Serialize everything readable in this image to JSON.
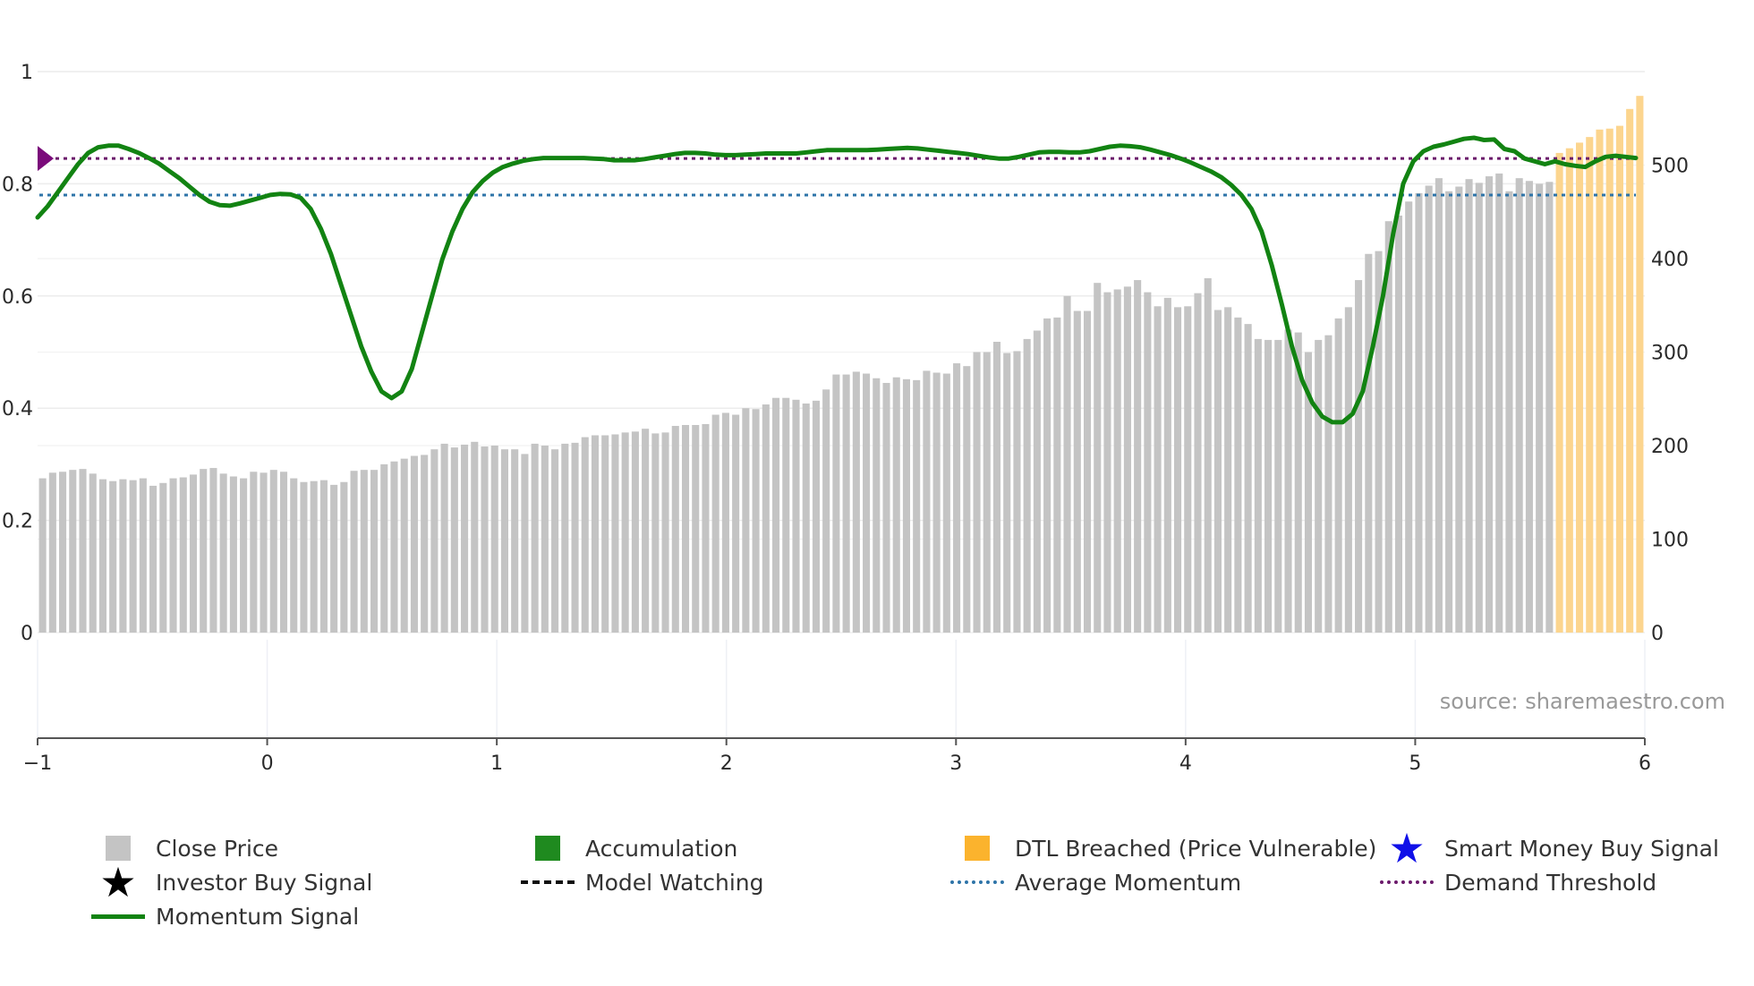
{
  "chart_data": {
    "type": "bar+line",
    "source": "source: sharemaestro.com",
    "left_axis": {
      "ticks": [
        0,
        0.2,
        0.4,
        0.6,
        0.8,
        1
      ],
      "tick_labels": [
        "0",
        "0.2",
        "0.4",
        "0.6",
        "0.8",
        "1"
      ],
      "range": [
        0,
        1
      ]
    },
    "right_axis": {
      "ticks": [
        0,
        100,
        200,
        300,
        400,
        500
      ],
      "tick_labels": [
        "0",
        "100",
        "200",
        "300",
        "400",
        "500"
      ],
      "range": [
        0,
        600
      ]
    },
    "x_axis": {
      "ticks": [
        -1,
        0,
        1,
        2,
        3,
        4,
        5,
        6
      ],
      "tick_labels": [
        "−1",
        "0",
        "1",
        "2",
        "3",
        "4",
        "5",
        "6"
      ],
      "range": [
        -1,
        6
      ]
    },
    "average_momentum": 0.78,
    "demand_threshold": 0.845,
    "colors": {
      "close_price": "#c4c4c4",
      "dtl_breached": "#fcd58e",
      "accumulation": "#1f8a1f",
      "momentum": "#128312",
      "average_momentum": "#2e74a8",
      "demand_threshold": "#6b1a6b",
      "marker": "#7a0a7a"
    },
    "close_price_series": {
      "name": "Close Price",
      "values": [
        165,
        171,
        172,
        174,
        175,
        170,
        164,
        162,
        164,
        163,
        165,
        157,
        160,
        165,
        166,
        169,
        175,
        176,
        170,
        167,
        165,
        172,
        171,
        174,
        172,
        165,
        161,
        162,
        163,
        158,
        161,
        173,
        174,
        174,
        180,
        183,
        186,
        189,
        190,
        196,
        202,
        198,
        201,
        204,
        199,
        200,
        196,
        196,
        191,
        202,
        200,
        196,
        202,
        203,
        209,
        211,
        211,
        212,
        214,
        215,
        218,
        213,
        214,
        221,
        222,
        222,
        223,
        233,
        235,
        233,
        240,
        239,
        244,
        251,
        251,
        249,
        245,
        248,
        260,
        276,
        276,
        279,
        277,
        272,
        267,
        273,
        271,
        270,
        280,
        278,
        277,
        288,
        285,
        300,
        300,
        311,
        299,
        301,
        314,
        323,
        336,
        337,
        360,
        344,
        344,
        374,
        364,
        367,
        370,
        377,
        364,
        349,
        358,
        348,
        349,
        363,
        379,
        345,
        348,
        337,
        330,
        314,
        313,
        313,
        324,
        321,
        300,
        313,
        318,
        336,
        348,
        377,
        405,
        408,
        440,
        446,
        461,
        470,
        478,
        486,
        472,
        477,
        485,
        481,
        488,
        491,
        472,
        486,
        483,
        480,
        482
      ],
      "dtl_values": [
        513,
        518,
        524,
        530,
        538,
        539,
        542,
        560,
        574
      ]
    },
    "momentum_series": {
      "name": "Momentum Signal",
      "values": [
        0.74,
        0.76,
        0.785,
        0.81,
        0.835,
        0.855,
        0.865,
        0.868,
        0.868,
        0.862,
        0.855,
        0.846,
        0.836,
        0.823,
        0.81,
        0.795,
        0.78,
        0.768,
        0.762,
        0.761,
        0.765,
        0.77,
        0.775,
        0.78,
        0.782,
        0.781,
        0.775,
        0.755,
        0.72,
        0.675,
        0.62,
        0.565,
        0.51,
        0.465,
        0.43,
        0.418,
        0.43,
        0.47,
        0.535,
        0.6,
        0.665,
        0.715,
        0.755,
        0.785,
        0.805,
        0.82,
        0.83,
        0.836,
        0.841,
        0.844,
        0.846,
        0.846,
        0.846,
        0.846,
        0.846,
        0.845,
        0.844,
        0.842,
        0.842,
        0.842,
        0.844,
        0.847,
        0.85,
        0.853,
        0.855,
        0.855,
        0.854,
        0.852,
        0.851,
        0.851,
        0.852,
        0.853,
        0.854,
        0.854,
        0.854,
        0.854,
        0.856,
        0.858,
        0.86,
        0.86,
        0.86,
        0.86,
        0.86,
        0.861,
        0.862,
        0.863,
        0.864,
        0.863,
        0.861,
        0.859,
        0.857,
        0.855,
        0.853,
        0.85,
        0.847,
        0.845,
        0.845,
        0.848,
        0.852,
        0.856,
        0.857,
        0.857,
        0.856,
        0.856,
        0.858,
        0.862,
        0.866,
        0.868,
        0.867,
        0.865,
        0.861,
        0.856,
        0.851,
        0.845,
        0.838,
        0.83,
        0.822,
        0.812,
        0.798,
        0.78,
        0.755,
        0.715,
        0.655,
        0.585,
        0.51,
        0.45,
        0.41,
        0.385,
        0.375,
        0.375,
        0.39,
        0.43,
        0.51,
        0.6,
        0.71,
        0.8,
        0.84,
        0.858,
        0.866,
        0.87,
        0.875,
        0.88,
        0.882,
        0.878,
        0.879,
        0.862,
        0.858,
        0.845,
        0.84,
        0.835,
        0.84,
        0.835,
        0.832,
        0.83,
        0.84,
        0.848,
        0.85,
        0.848,
        0.846
      ]
    }
  },
  "legend": {
    "close_price": "Close Price",
    "accumulation": "Accumulation",
    "dtl_breached": "DTL Breached (Price Vulnerable)",
    "smart_money": "Smart Money Buy Signal",
    "investor_buy": "Investor Buy Signal",
    "model_watching": "Model Watching",
    "average_momentum": "Average Momentum",
    "demand_threshold": "Demand Threshold",
    "momentum_signal": "Momentum Signal"
  },
  "icons": {
    "star": "★"
  }
}
